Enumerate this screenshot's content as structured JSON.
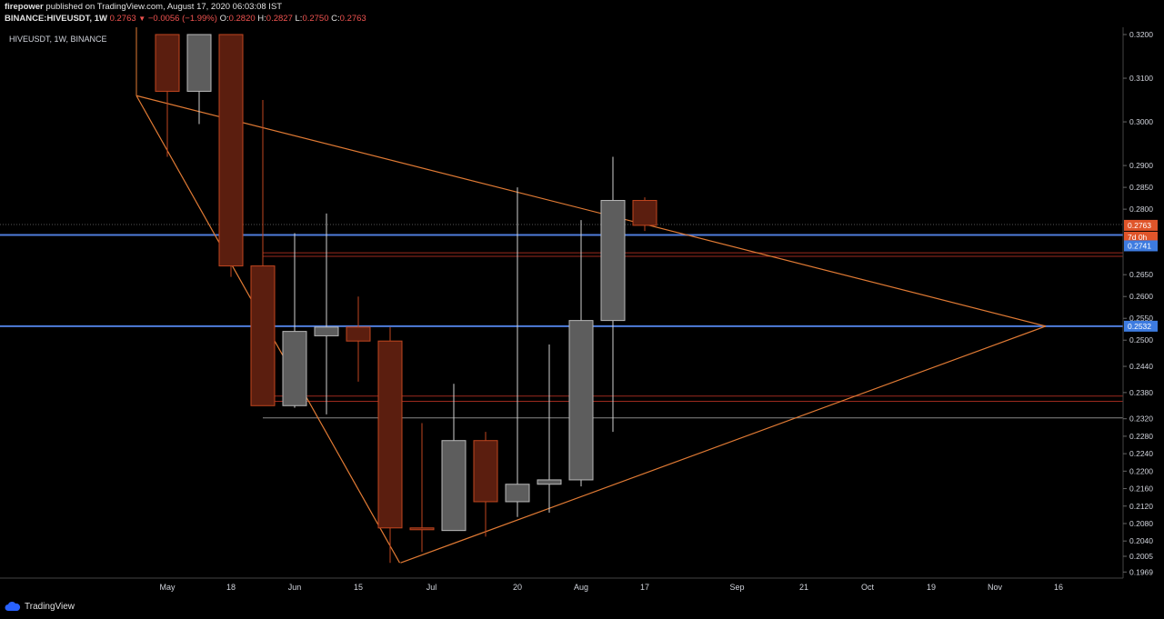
{
  "header": {
    "publisher": "firepower",
    "published_text": "published on TradingView.com, August 17, 2020 06:03:08 IST",
    "symbol": "BINANCE:HIVEUSDT, 1W",
    "last": "0.2763",
    "change": "−0.0056 (−1.99%)",
    "o_label": "O:",
    "o": "0.2820",
    "h_label": "H:",
    "h": "0.2827",
    "l_label": "L:",
    "l": "0.2750",
    "c_label": "C:",
    "c": "0.2763"
  },
  "chart_legend": "HIVEUSDT, 1W, BINANCE",
  "footer": {
    "brand": "TradingView"
  },
  "colors": {
    "background": "#000000",
    "up": "#5d5d5d",
    "down": "#5b1e0f",
    "down_border": "#c0461f",
    "trendline": "#e07a34",
    "hline_blue": "#4f7ddb",
    "hline_red": "#9c2a1e",
    "grid_text": "#d1d4dc"
  },
  "chart_data": {
    "type": "candlestick",
    "y_axis_ticks": [
      "0.3200",
      "0.3100",
      "0.3000",
      "0.2900",
      "0.2850",
      "0.2800",
      "0.2650",
      "0.2600",
      "0.2550",
      "0.2500",
      "0.2440",
      "0.2380",
      "0.2320",
      "0.2280",
      "0.2240",
      "0.2200",
      "0.2160",
      "0.2120",
      "0.2080",
      "0.2040",
      "0.2005",
      "0.1969"
    ],
    "x_axis_ticks": [
      "May",
      "18",
      "Jun",
      "15",
      "Jul",
      "20",
      "Aug",
      "17",
      "Sep",
      "21",
      "Oct",
      "19",
      "Nov",
      "16"
    ],
    "price_labels": [
      {
        "text": "0.2763",
        "color": "#e0552a"
      },
      {
        "text": "7d 0h",
        "color": "#e0552a"
      },
      {
        "text": "0.2741",
        "color": "#3d7be0"
      },
      {
        "text": "0.2532",
        "color": "#3d7be0"
      }
    ],
    "candles": [
      {
        "week": "May 4",
        "open": 0.32,
        "high": 0.32,
        "low": 0.292,
        "close": 0.307,
        "dir": "down"
      },
      {
        "week": "May 11",
        "open": 0.307,
        "high": 0.32,
        "low": 0.2995,
        "close": 0.32,
        "dir": "up"
      },
      {
        "week": "May 18",
        "open": 0.32,
        "high": 0.32,
        "low": 0.2645,
        "close": 0.267,
        "dir": "down"
      },
      {
        "week": "May 25",
        "open": 0.267,
        "high": 0.305,
        "low": 0.235,
        "close": 0.235,
        "dir": "down"
      },
      {
        "week": "Jun 1",
        "open": 0.235,
        "high": 0.2745,
        "low": 0.2345,
        "close": 0.252,
        "dir": "up"
      },
      {
        "week": "Jun 8",
        "open": 0.251,
        "high": 0.279,
        "low": 0.233,
        "close": 0.253,
        "dir": "up"
      },
      {
        "week": "Jun 15",
        "open": 0.253,
        "high": 0.26,
        "low": 0.2405,
        "close": 0.2498,
        "dir": "down"
      },
      {
        "week": "Jun 22",
        "open": 0.2498,
        "high": 0.253,
        "low": 0.199,
        "close": 0.207,
        "dir": "down"
      },
      {
        "week": "Jun 29",
        "open": 0.207,
        "high": 0.231,
        "low": 0.2015,
        "close": 0.2066,
        "dir": "down"
      },
      {
        "week": "Jul 6",
        "open": 0.2064,
        "high": 0.24,
        "low": 0.2064,
        "close": 0.227,
        "dir": "up"
      },
      {
        "week": "Jul 13",
        "open": 0.227,
        "high": 0.229,
        "low": 0.205,
        "close": 0.213,
        "dir": "down"
      },
      {
        "week": "Jul 20",
        "open": 0.213,
        "high": 0.285,
        "low": 0.2095,
        "close": 0.217,
        "dir": "up"
      },
      {
        "week": "Jul 27",
        "open": 0.217,
        "high": 0.249,
        "low": 0.2105,
        "close": 0.218,
        "dir": "up"
      },
      {
        "week": "Aug 3",
        "open": 0.218,
        "high": 0.2775,
        "low": 0.2165,
        "close": 0.2545,
        "dir": "up"
      },
      {
        "week": "Aug 10",
        "open": 0.2545,
        "high": 0.292,
        "low": 0.229,
        "close": 0.282,
        "dir": "up"
      },
      {
        "week": "Aug 17",
        "open": 0.282,
        "high": 0.2827,
        "low": 0.275,
        "close": 0.2763,
        "dir": "down"
      }
    ],
    "horizontal_lines": [
      {
        "price": 0.2741,
        "color": "blue"
      },
      {
        "price": 0.2532,
        "color": "blue"
      },
      {
        "price": 0.27,
        "color": "red"
      },
      {
        "price": 0.2692,
        "color": "red"
      },
      {
        "price": 0.2372,
        "color": "red"
      },
      {
        "price": 0.236,
        "color": "red"
      },
      {
        "price": 0.2322,
        "color": "gray"
      },
      {
        "price": 0.2765,
        "color": "gray-dotted"
      }
    ]
  }
}
